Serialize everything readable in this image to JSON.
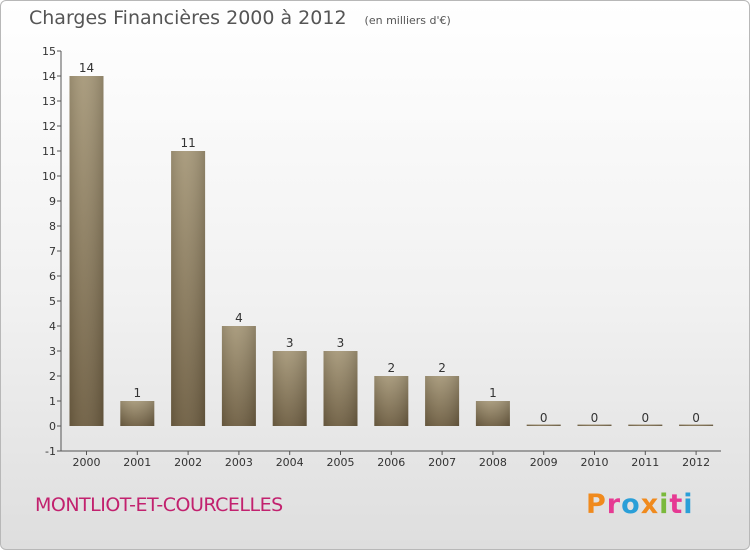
{
  "header": {
    "title": "Charges Financières 2000 à 2012",
    "subtitle": "(en milliers d'€)"
  },
  "footer": {
    "commune": "MONTLIOT-ET-COURCELLES",
    "logo": "Proxiti"
  },
  "colors": {
    "bar_top": "#a69879",
    "bar_bottom": "#6e5e42",
    "commune_text": "#c2216e",
    "axis": "#555555",
    "logo_letters": [
      "#f08a1d",
      "#e63a93",
      "#2a9fd8",
      "#f08a1d",
      "#7ab93b",
      "#e63a93",
      "#2a9fd8"
    ]
  },
  "chart_data": {
    "type": "bar",
    "categories": [
      "2000",
      "2001",
      "2002",
      "2003",
      "2004",
      "2005",
      "2006",
      "2007",
      "2008",
      "2009",
      "2010",
      "2011",
      "2012"
    ],
    "values": [
      14,
      1,
      11,
      4,
      3,
      3,
      2,
      2,
      1,
      0,
      0,
      0,
      0
    ],
    "data_labels": [
      "14",
      "1",
      "11",
      "4",
      "3",
      "3",
      "2",
      "2",
      "1",
      "0",
      "0",
      "0",
      "0"
    ],
    "title": "Charges Financières 2000 à 2012",
    "xlabel": "",
    "ylabel": "",
    "ylim": [
      -1,
      15
    ],
    "yticks": [
      -1,
      0,
      1,
      2,
      3,
      4,
      5,
      6,
      7,
      8,
      9,
      10,
      11,
      12,
      13,
      14,
      15
    ],
    "grid": false,
    "legend": "none"
  }
}
